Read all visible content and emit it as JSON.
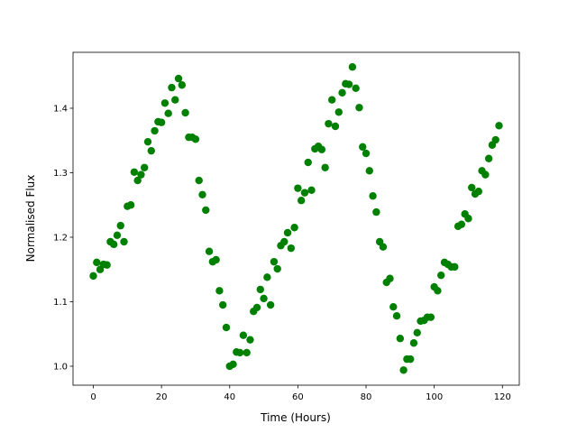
{
  "chart_data": {
    "type": "scatter",
    "xlabel": "Time (Hours)",
    "ylabel": "Normalised Flux",
    "color": "#008000",
    "x": [
      0,
      1,
      2,
      3,
      4,
      5,
      6,
      7,
      8,
      9,
      10,
      11,
      12,
      13,
      14,
      15,
      16,
      17,
      18,
      19,
      20,
      21,
      22,
      23,
      24,
      25,
      26,
      27,
      28,
      29,
      30,
      31,
      32,
      33,
      34,
      35,
      36,
      37,
      38,
      39,
      40,
      41,
      42,
      43,
      44,
      45,
      46,
      47,
      48,
      49,
      50,
      51,
      52,
      53,
      54,
      55,
      56,
      57,
      58,
      59,
      60,
      61,
      62,
      63,
      64,
      65,
      66,
      67,
      68,
      69,
      70,
      71,
      72,
      73,
      74,
      75,
      76,
      77,
      78,
      79,
      80,
      81,
      82,
      83,
      84,
      85,
      86,
      87,
      88,
      89,
      90,
      91,
      92,
      93,
      94,
      95,
      96,
      97,
      98,
      99,
      100,
      101,
      102,
      103,
      104,
      105,
      106,
      107,
      108,
      109,
      110,
      111,
      112,
      113,
      114,
      115,
      116,
      117,
      118,
      119
    ],
    "values": [
      1.14,
      1.161,
      1.15,
      1.158,
      1.157,
      1.193,
      1.189,
      1.203,
      1.218,
      1.193,
      1.248,
      1.25,
      1.301,
      1.288,
      1.297,
      1.308,
      1.348,
      1.334,
      1.365,
      1.379,
      1.378,
      1.408,
      1.392,
      1.432,
      1.413,
      1.446,
      1.436,
      1.393,
      1.355,
      1.355,
      1.352,
      1.288,
      1.266,
      1.242,
      1.178,
      1.162,
      1.165,
      1.117,
      1.095,
      1.06,
      1.0,
      1.003,
      1.022,
      1.021,
      1.048,
      1.021,
      1.041,
      1.085,
      1.091,
      1.119,
      1.105,
      1.138,
      1.095,
      1.162,
      1.151,
      1.187,
      1.193,
      1.207,
      1.183,
      1.215,
      1.276,
      1.257,
      1.269,
      1.316,
      1.273,
      1.337,
      1.341,
      1.336,
      1.308,
      1.376,
      1.413,
      1.372,
      1.394,
      1.424,
      1.438,
      1.437,
      1.464,
      1.431,
      1.401,
      1.34,
      1.33,
      1.303,
      1.264,
      1.239,
      1.193,
      1.185,
      1.13,
      1.136,
      1.092,
      1.078,
      1.043,
      0.994,
      1.011,
      1.011,
      1.036,
      1.052,
      1.07,
      1.071,
      1.076,
      1.076,
      1.123,
      1.117,
      1.141,
      1.161,
      1.158,
      1.154,
      1.154,
      1.217,
      1.22,
      1.236,
      1.229,
      1.277,
      1.267,
      1.271,
      1.303,
      1.297,
      1.322,
      1.343,
      1.351,
      1.373
    ],
    "xlim": [
      -5.95,
      124.95
    ],
    "ylim": [
      0.9706,
      1.4867
    ],
    "xticks": [
      0,
      20,
      40,
      60,
      80,
      100,
      120
    ],
    "yticks": [
      {
        "value": 1.0,
        "label": "1.0"
      },
      1.1,
      1.2,
      1.3,
      1.4
    ]
  }
}
